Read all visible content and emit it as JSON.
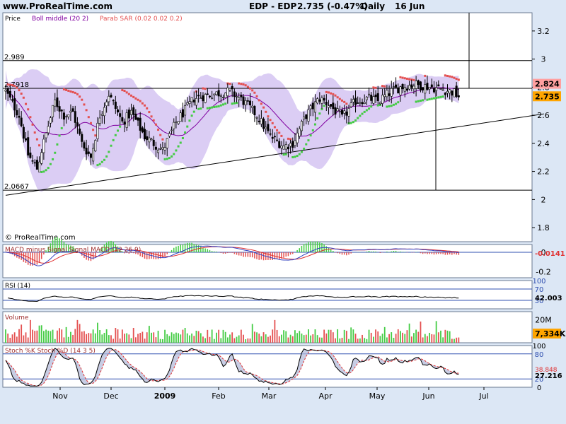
{
  "header": {
    "site": "www.ProRealTime.com",
    "symbol": "EDP - EDP",
    "last": "2.735 (-0.47%)",
    "period": "Daily",
    "date": "16 Jun"
  },
  "watermark": "© ProRealTime.com",
  "colors": {
    "background": "#dce7f5",
    "panel": "#ffffff",
    "up_candle": "#ffffff",
    "down_candle": "#000000",
    "bollinger_band": "#ccb8f0",
    "bollinger_middle": "#8000a0",
    "sar_up": "#44cc44",
    "sar_down": "#e45050",
    "volume_up": "#44cc44",
    "volume_down": "#e45050",
    "last_price_box": "#ffa500",
    "sar_box": "#ffa0a0",
    "line_black": "#000000",
    "reference_blue": "#3050b0"
  },
  "chart_data": [
    {
      "type": "candlestick",
      "panel": "price",
      "legend": [
        "Price",
        "Boll middle (20 2)",
        "Parab SAR (0.02 0.02 0.2)"
      ],
      "x_ticks": [
        "Nov",
        "Dec",
        "2009",
        "Feb",
        "Mar",
        "Apr",
        "May",
        "Jun",
        "Jul"
      ],
      "y_ticks": [
        "1.8",
        "2",
        "2.2",
        "2.4",
        "2.6",
        "2.8",
        "3",
        "3.2"
      ],
      "ylim": [
        1.7,
        3.33
      ],
      "last_price": "2.735",
      "sar_value": "2.824",
      "level_labels": [
        "2.989",
        "2.7918",
        "2.0667"
      ],
      "levels": [
        2.989,
        2.7918,
        2.0667
      ],
      "close_profile": [
        [
          0,
          2.77
        ],
        [
          6,
          2.6
        ],
        [
          10,
          2.32
        ],
        [
          14,
          2.22
        ],
        [
          16,
          2.35
        ],
        [
          22,
          2.7
        ],
        [
          26,
          2.6
        ],
        [
          30,
          2.62
        ],
        [
          34,
          2.4
        ],
        [
          38,
          2.3
        ],
        [
          42,
          2.6
        ],
        [
          46,
          2.75
        ],
        [
          52,
          2.55
        ],
        [
          56,
          2.62
        ],
        [
          62,
          2.45
        ],
        [
          66,
          2.4
        ],
        [
          70,
          2.35
        ],
        [
          76,
          2.55
        ],
        [
          84,
          2.72
        ],
        [
          92,
          2.75
        ],
        [
          100,
          2.77
        ],
        [
          106,
          2.7
        ],
        [
          112,
          2.6
        ],
        [
          118,
          2.45
        ],
        [
          124,
          2.38
        ],
        [
          128,
          2.4
        ],
        [
          134,
          2.6
        ],
        [
          140,
          2.72
        ],
        [
          144,
          2.68
        ],
        [
          150,
          2.58
        ],
        [
          156,
          2.7
        ],
        [
          162,
          2.72
        ],
        [
          166,
          2.7
        ],
        [
          172,
          2.77
        ],
        [
          176,
          2.8
        ],
        [
          182,
          2.82
        ],
        [
          190,
          2.8
        ],
        [
          196,
          2.78
        ],
        [
          200,
          2.76
        ],
        [
          202,
          2.735
        ]
      ],
      "annotations": [
        {
          "type": "hline",
          "value": 2.989
        },
        {
          "type": "hline",
          "value": 2.7918
        },
        {
          "type": "hline",
          "value": 2.0667
        },
        {
          "type": "trendline",
          "from": [
            0,
            2.03
          ],
          "to": [
            240,
            2.61
          ]
        }
      ]
    },
    {
      "type": "line",
      "panel": "macd",
      "legend": "MACD minus Signal Signal MACD (12 26 9)",
      "value_label": "-0.0141",
      "y_ticks": [
        "0",
        "-0.2"
      ],
      "ylim": [
        -0.26,
        0.08
      ]
    },
    {
      "type": "line",
      "panel": "rsi",
      "legend": "RSI (14)",
      "value_label": "42.003",
      "y_ticks": [
        "100",
        "70",
        "30"
      ],
      "ylim": [
        0,
        100
      ],
      "levels": [
        70,
        30
      ]
    },
    {
      "type": "bar",
      "panel": "volume",
      "legend": "Volume",
      "value_label": "7,334K",
      "y_ticks": [
        "20M"
      ],
      "ylim": [
        0,
        27000
      ]
    },
    {
      "type": "line",
      "panel": "stochastic",
      "legend": "Stoch %K Stoch %D (14 3 5)",
      "value_labels": [
        "27.216",
        "38.848"
      ],
      "y_ticks": [
        "100",
        "80",
        "20",
        "0"
      ],
      "ylim": [
        0,
        100
      ],
      "levels": [
        80,
        20
      ]
    }
  ]
}
